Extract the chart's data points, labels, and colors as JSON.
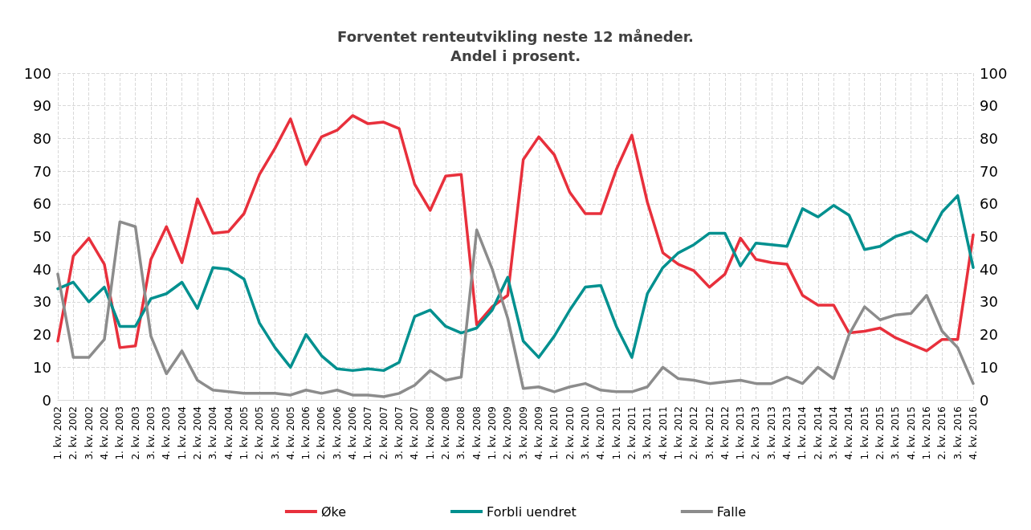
{
  "chart_data": {
    "type": "line",
    "title": "Forventet renteutvikling neste 12 måneder.\nAndel i prosent.",
    "categories": [
      "1. kv. 2002",
      "2. kv. 2002",
      "3. kv. 2002",
      "4. kv. 2002",
      "1. kv. 2003",
      "2. kv. 2003",
      "3. kv. 2003",
      "4. kv. 2003",
      "1. kv. 2004",
      "2. kv. 2004",
      "3. kv. 2004",
      "4. kv. 2004",
      "1. kv. 2005",
      "2. kv. 2005",
      "3. kv. 2005",
      "4. kv. 2005",
      "1. kv. 2006",
      "2. kv. 2006",
      "3. kv. 2006",
      "4. kv. 2006",
      "1. kv. 2007",
      "2. kv. 2007",
      "3. kv. 2007",
      "4. kv. 2007",
      "1. kv. 2008",
      "2. kv. 2008",
      "3. kv. 2008",
      "4. kv. 2008",
      "1. kv. 2009",
      "2. kv. 2009",
      "3. kv. 2009",
      "4. kv. 2009",
      "1. kv. 2010",
      "2. kv. 2010",
      "3. kv. 2010",
      "4. kv. 2010",
      "1. kv. 2011",
      "2. kv. 2011",
      "3. kv. 2011",
      "4. kv. 2011",
      "1. kv. 2012",
      "2. kv. 2012",
      "3. kv. 2012",
      "4. kv. 2012",
      "1. kv. 2013",
      "2. kv. 2013",
      "3. kv. 2013",
      "4. kv. 2013",
      "1. kv. 2014",
      "2. kv. 2014",
      "3. kv. 2014",
      "4. kv. 2014",
      "1. kv. 2015",
      "2. kv. 2015",
      "3. kv. 2015",
      "4. kv. 2015",
      "1. kv. 2016",
      "2. kv. 2016",
      "3. kv. 2016",
      "4. kv. 2016"
    ],
    "series": [
      {
        "name": "Øke",
        "color": "#e8303c",
        "values": [
          18,
          44,
          49.5,
          41.5,
          16,
          16.5,
          43,
          53,
          42,
          61.5,
          51,
          51.5,
          57,
          69,
          77,
          86,
          72,
          80.5,
          82.5,
          87,
          84.5,
          85,
          83,
          66,
          58,
          68.5,
          69,
          23,
          28.5,
          32,
          73.5,
          80.5,
          75,
          63.5,
          57,
          57,
          70.5,
          81,
          60.5,
          45,
          41.5,
          39.5,
          34.5,
          38.5,
          49.5,
          43,
          42,
          41.5,
          32,
          29,
          29,
          20.5,
          21,
          22,
          19,
          17,
          15,
          18.5,
          18.5,
          50.5
        ]
      },
      {
        "name": "Forbli uendret",
        "color": "#00908f",
        "values": [
          34,
          36,
          30,
          34.5,
          22.5,
          22.5,
          31,
          32.5,
          36,
          28,
          40.5,
          40,
          37,
          23.5,
          16,
          10,
          20,
          13.5,
          9.5,
          9,
          9.5,
          9,
          11.5,
          25.5,
          27.5,
          22.5,
          20.5,
          22,
          27.5,
          37.5,
          18,
          13,
          19.5,
          27.5,
          34.5,
          35,
          22.5,
          13,
          32.5,
          40.5,
          45,
          47.5,
          51,
          51,
          41,
          48,
          47.5,
          47,
          58.5,
          56,
          59.5,
          56.5,
          46,
          47,
          50,
          51.5,
          48.5,
          57.5,
          62.5,
          40.5
        ]
      },
      {
        "name": "Falle",
        "color": "#8c8c8c",
        "values": [
          38.5,
          13,
          13,
          18.5,
          54.5,
          53,
          19.5,
          8,
          15,
          6,
          3,
          2.5,
          2,
          2,
          2,
          1.5,
          3,
          2,
          3,
          1.5,
          1.5,
          1,
          2,
          4.5,
          9,
          6,
          7,
          52,
          40,
          25,
          3.5,
          4,
          2.5,
          4,
          5,
          3,
          2.5,
          2.5,
          4,
          10,
          6.5,
          6,
          5,
          5.5,
          6,
          5,
          5,
          7,
          5,
          10,
          6.5,
          20,
          28.5,
          24.5,
          26,
          26.5,
          32,
          21,
          16,
          5
        ]
      }
    ],
    "ylim": [
      0,
      100
    ],
    "yticks": [
      0,
      10,
      20,
      30,
      40,
      50,
      60,
      70,
      80,
      90,
      100
    ],
    "y2lim": [
      0,
      100
    ],
    "y2ticks": [
      0,
      10,
      20,
      30,
      40,
      50,
      60,
      70,
      80,
      90,
      100
    ],
    "grid": true,
    "legend": "bottom",
    "marker": "none",
    "line_style": "solid"
  }
}
